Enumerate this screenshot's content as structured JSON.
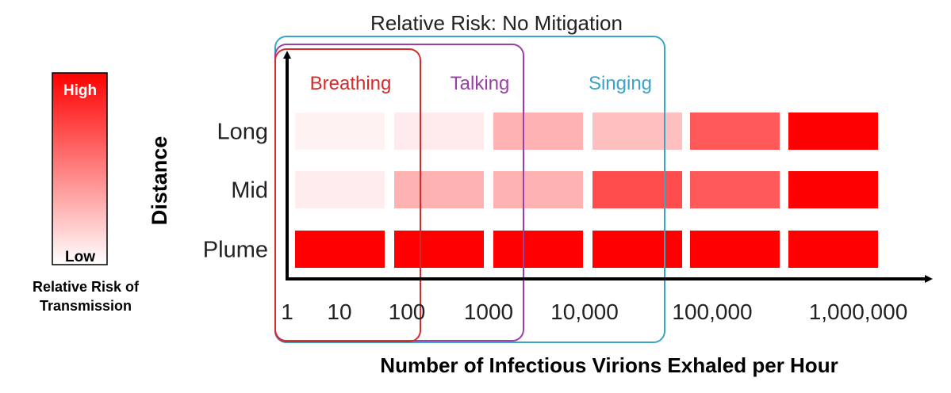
{
  "chart_data": {
    "type": "heatmap",
    "title": "Relative Risk: No Mitigation",
    "xlabel": "Number of Infectious Virions Exhaled per Hour",
    "ylabel": "Distance",
    "x_ticks": [
      "1",
      "10",
      "100",
      "1000",
      "10,000",
      "100,000",
      "1,000,000"
    ],
    "rows": [
      "Long",
      "Mid",
      "Plume"
    ],
    "risk_levels": [
      [
        0.05,
        0.08,
        0.3,
        0.25,
        0.65,
        1.0
      ],
      [
        0.07,
        0.3,
        0.3,
        0.7,
        0.65,
        1.0
      ],
      [
        1.0,
        1.0,
        1.0,
        1.0,
        1.0,
        1.0
      ]
    ],
    "ranges": [
      {
        "label": "Breathing",
        "color": "#d42a2a"
      },
      {
        "label": "Talking",
        "color": "#9b3fa8"
      },
      {
        "label": "Singing",
        "color": "#3aa3c8"
      }
    ],
    "legend": {
      "high": "High",
      "low": "Low",
      "caption_line1": "Relative Risk of",
      "caption_line2": "Transmission",
      "colors": {
        "high": "#ff0000",
        "low": "#ffffff"
      }
    },
    "colors": {
      "cell": "#ff0000",
      "axis": "#000000"
    }
  }
}
